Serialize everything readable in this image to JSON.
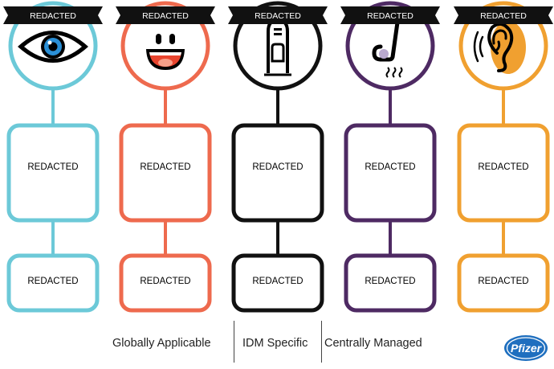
{
  "columns": [
    {
      "id": "sight",
      "banner": "REDACTED",
      "icon": "eye-icon",
      "color": "#6cc9d8",
      "box1": "REDACTED",
      "box2": "REDACTED"
    },
    {
      "id": "taste",
      "banner": "REDACTED",
      "icon": "smiley-mouth-icon",
      "color": "#ee6a4e",
      "box1": "REDACTED",
      "box2": "REDACTED"
    },
    {
      "id": "touch",
      "banner": "REDACTED",
      "icon": "fingertip-icon",
      "color": "#111111",
      "box1": "REDACTED",
      "box2": "REDACTED"
    },
    {
      "id": "smell",
      "banner": "REDACTED",
      "icon": "nose-icon",
      "color": "#4e2a63",
      "box1": "REDACTED",
      "box2": "REDACTED"
    },
    {
      "id": "hearing",
      "banner": "REDACTED",
      "icon": "ear-icon",
      "color": "#f0a030",
      "box1": "REDACTED",
      "box2": "REDACTED"
    }
  ],
  "footer": {
    "globally_applicable": "Globally Applicable",
    "idm_specific": "IDM Specific",
    "centrally_managed": "Centrally Managed"
  },
  "logo": {
    "text": "Pfizer",
    "color": "#1f6fbf"
  }
}
